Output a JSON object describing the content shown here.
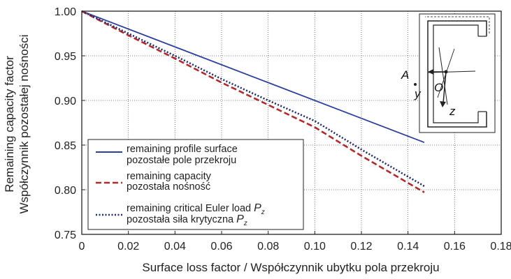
{
  "chart_data": {
    "type": "line",
    "xlabel": "Surface loss factor / Współczynnik ubytku pola przekroju",
    "ylabel_line1": "Remaining capacity factor",
    "ylabel_line2": "Współczynnik pozostałej nośności",
    "xlim": [
      0,
      0.18
    ],
    "ylim": [
      0.75,
      1.0
    ],
    "x_ticks": [
      "0",
      "0.02",
      "0.04",
      "0.06",
      "0.08",
      "0.10",
      "0.12",
      "0.14",
      "0.16",
      "0.18"
    ],
    "y_ticks": [
      "0.75",
      "0.80",
      "0.85",
      "0.90",
      "0.95",
      "1.00"
    ],
    "grid": "dotted",
    "legend_position": "bottom-left",
    "series": [
      {
        "name_line1": "remaining profile surface",
        "name_line2": "pozostałe pole przekroju",
        "style": "solid",
        "color": "#2b3f9e",
        "x": [
          0,
          0.147
        ],
        "y": [
          1.0,
          0.853
        ]
      },
      {
        "name_line1": "remaining capacity",
        "name_line2": "pozostała nośność",
        "style": "dashed",
        "color": "#b22a2a",
        "x": [
          0,
          0.02,
          0.04,
          0.06,
          0.08,
          0.1,
          0.12,
          0.147
        ],
        "y": [
          1.0,
          0.973,
          0.947,
          0.92,
          0.895,
          0.87,
          0.838,
          0.797
        ]
      },
      {
        "name_line1": "remaining critical Euler load",
        "name_line1_symbol": "P",
        "name_line1_sub": "z",
        "name_line2": "pozostała siła krytyczna",
        "name_line2_symbol": "P",
        "name_line2_sub": "z",
        "style": "dotted",
        "color": "#1f2a6e",
        "x": [
          0,
          0.02,
          0.04,
          0.06,
          0.08,
          0.1,
          0.12,
          0.147
        ],
        "y": [
          1.0,
          0.975,
          0.95,
          0.924,
          0.9,
          0.877,
          0.845,
          0.804
        ]
      }
    ],
    "inset_labels": {
      "a": "A",
      "o": "O",
      "y": "y",
      "z": "z"
    }
  }
}
